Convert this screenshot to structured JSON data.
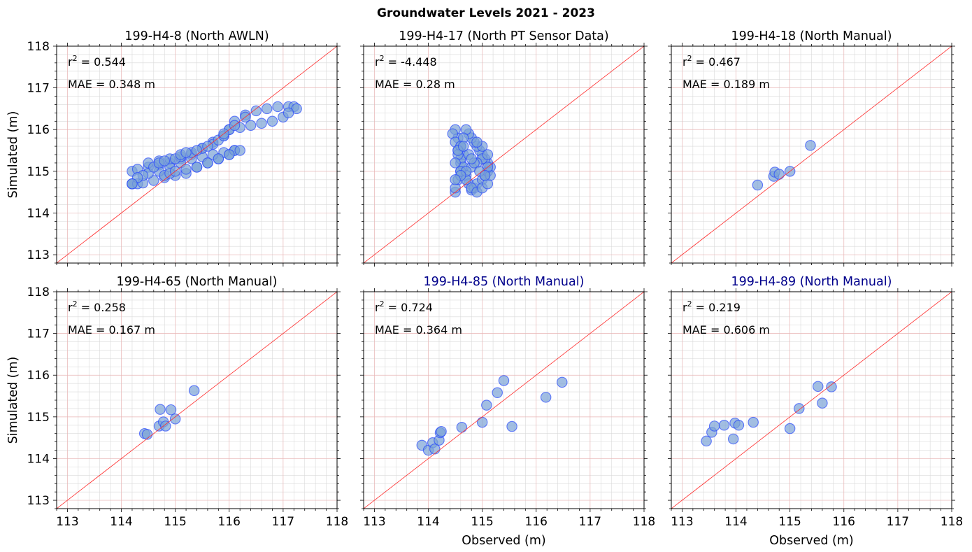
{
  "figure": {
    "title": "Groundwater Levels 2021 - 2023"
  },
  "colors": {
    "point_fill": "#7ba3d6",
    "point_edge": "#1f3fff",
    "one_to_one_line": "#ff2a2a",
    "grid_major": "#e8b4b4",
    "grid_minor": "#d9d9d9",
    "title_default": "#000000",
    "title_highlight": "#00008b"
  },
  "chart_data": [
    {
      "type": "scatter",
      "title": "199-H4-8 (North AWLN)",
      "title_color": "#000000",
      "stats": {
        "r2_label": "r",
        "r2_sup": "2",
        "r2_value": " = 0.544",
        "mae": "MAE = 0.348 m"
      },
      "xlabel": "",
      "ylabel": "Simulated (m)",
      "xlim": [
        112.8,
        118
      ],
      "ylim": [
        112.8,
        118
      ],
      "xticks": [],
      "yticks": [
        "113",
        "114",
        "115",
        "116",
        "117",
        "118"
      ],
      "grid": true,
      "one_to_one_line": true,
      "points_dense": true,
      "x": [
        114.2,
        114.2,
        114.3,
        114.5,
        114.7,
        114.9,
        115.1,
        115.3,
        115.5,
        115.7,
        115.9,
        116.0,
        116.1,
        116.3,
        116.5,
        116.7,
        116.9,
        117.1,
        117.2,
        117.25,
        114.2,
        114.3,
        114.4,
        114.6,
        114.8,
        115.0,
        115.2,
        115.4,
        115.6,
        115.8,
        116.0,
        116.1,
        116.1,
        115.9,
        115.7,
        115.5,
        115.3,
        115.1,
        114.9,
        114.7,
        114.5,
        114.4,
        114.3,
        114.2,
        114.5,
        114.7,
        114.9,
        115.1,
        115.3,
        115.5,
        115.7,
        115.8,
        115.9,
        116.0,
        116.2,
        116.4,
        116.6,
        116.8,
        117.0,
        117.1,
        114.8,
        114.9,
        115.0,
        115.2,
        115.4,
        115.6,
        115.8,
        116.0,
        116.2,
        114.6,
        114.7,
        114.8,
        115.0,
        115.1,
        115.2,
        115.4,
        115.6,
        115.9,
        116.1,
        116.3
      ],
      "y": [
        114.7,
        115.0,
        115.05,
        115.1,
        115.15,
        115.2,
        115.3,
        115.4,
        115.55,
        115.7,
        115.85,
        116.0,
        116.2,
        116.35,
        116.45,
        116.5,
        116.55,
        116.55,
        116.55,
        116.5,
        114.7,
        114.7,
        114.72,
        114.78,
        114.85,
        114.9,
        114.95,
        115.1,
        115.2,
        115.3,
        115.4,
        115.5,
        115.5,
        115.45,
        115.4,
        115.35,
        115.3,
        115.2,
        115.1,
        115.0,
        114.95,
        114.9,
        114.85,
        114.7,
        115.2,
        115.25,
        115.3,
        115.35,
        115.45,
        115.55,
        115.65,
        115.75,
        115.85,
        116.0,
        116.05,
        116.1,
        116.15,
        116.2,
        116.3,
        116.4,
        114.9,
        114.95,
        115.0,
        115.05,
        115.1,
        115.2,
        115.3,
        115.4,
        115.5,
        115.1,
        115.2,
        115.25,
        115.3,
        115.4,
        115.45,
        115.5,
        115.6,
        115.9,
        116.1,
        116.3
      ]
    },
    {
      "type": "scatter",
      "title": "199-H4-17 (North PT Sensor Data)",
      "title_color": "#000000",
      "stats": {
        "r2_label": "r",
        "r2_sup": "2",
        "r2_value": " = -4.448",
        "mae": "MAE = 0.28 m"
      },
      "xlabel": "",
      "ylabel": "",
      "xlim": [
        112.8,
        118
      ],
      "ylim": [
        112.8,
        118
      ],
      "xticks": [],
      "yticks": [],
      "grid": true,
      "one_to_one_line": true,
      "points_dense": true,
      "x": [
        114.5,
        114.5,
        114.55,
        114.6,
        114.6,
        114.65,
        114.6,
        114.55,
        114.5,
        114.45,
        114.5,
        114.55,
        114.6,
        114.65,
        114.7,
        114.75,
        114.8,
        114.85,
        114.9,
        115.0,
        115.05,
        115.1,
        115.15,
        115.1,
        115.05,
        115.0,
        114.95,
        114.9,
        114.85,
        114.8,
        114.75,
        114.7,
        114.65,
        114.6,
        114.55,
        114.5,
        114.6,
        114.7,
        114.8,
        114.9,
        115.0,
        115.1,
        115.15,
        115.1,
        115.0,
        114.9,
        114.8,
        114.7,
        114.6,
        114.5,
        114.55,
        114.65,
        114.75,
        114.85,
        114.95,
        115.05,
        115.1,
        115.0,
        114.9,
        114.8
      ],
      "y": [
        114.5,
        114.6,
        114.8,
        115.0,
        115.2,
        115.4,
        115.6,
        115.8,
        116.0,
        115.9,
        115.7,
        115.5,
        115.3,
        115.1,
        114.9,
        114.7,
        114.55,
        114.6,
        114.7,
        114.8,
        114.9,
        115.0,
        115.1,
        115.2,
        115.3,
        115.4,
        115.5,
        115.6,
        115.7,
        115.8,
        115.9,
        116.0,
        115.8,
        115.6,
        115.4,
        115.2,
        115.0,
        114.8,
        114.6,
        114.5,
        114.6,
        114.7,
        114.9,
        115.1,
        115.3,
        115.2,
        115.1,
        115.0,
        114.9,
        114.8,
        115.5,
        115.6,
        115.4,
        115.2,
        115.0,
        114.9,
        115.4,
        115.6,
        115.7,
        115.3
      ]
    },
    {
      "type": "scatter",
      "title": "199-H4-18 (North Manual)",
      "title_color": "#000000",
      "stats": {
        "r2_label": "r",
        "r2_sup": "2",
        "r2_value": " = 0.467",
        "mae": "MAE = 0.189 m"
      },
      "xlabel": "",
      "ylabel": "",
      "xlim": [
        112.8,
        118
      ],
      "ylim": [
        112.8,
        118
      ],
      "xticks": [],
      "yticks": [],
      "grid": true,
      "one_to_one_line": true,
      "points_dense": false,
      "x": [
        114.4,
        114.7,
        114.72,
        114.8,
        115.0,
        115.38
      ],
      "y": [
        114.67,
        114.88,
        114.98,
        114.93,
        115.0,
        115.62
      ]
    },
    {
      "type": "scatter",
      "title": "199-H4-65 (North Manual)",
      "title_color": "#000000",
      "stats": {
        "r2_label": "r",
        "r2_sup": "2",
        "r2_value": " = 0.258",
        "mae": "MAE = 0.167 m"
      },
      "xlabel": "",
      "ylabel": "Simulated (m)",
      "xlim": [
        112.8,
        118
      ],
      "ylim": [
        112.8,
        118
      ],
      "xticks": [
        "113",
        "114",
        "115",
        "116",
        "117",
        "118"
      ],
      "yticks": [
        "113",
        "114",
        "115",
        "116",
        "117",
        "118"
      ],
      "grid": true,
      "one_to_one_line": true,
      "points_dense": false,
      "x": [
        114.43,
        114.48,
        114.7,
        114.72,
        114.78,
        114.82,
        114.92,
        115.0,
        115.35
      ],
      "y": [
        114.6,
        114.58,
        114.78,
        115.18,
        114.88,
        114.78,
        115.17,
        114.95,
        115.63
      ]
    },
    {
      "type": "scatter",
      "title": "199-H4-85 (North Manual)",
      "title_color": "#00008b",
      "stats": {
        "r2_label": "r",
        "r2_sup": "2",
        "r2_value": " = 0.724",
        "mae": "MAE = 0.364 m"
      },
      "xlabel": "Observed (m)",
      "ylabel": "",
      "xlim": [
        112.8,
        118
      ],
      "ylim": [
        112.8,
        118
      ],
      "xticks": [
        "113",
        "114",
        "115",
        "116",
        "117",
        "118"
      ],
      "yticks": [],
      "grid": true,
      "one_to_one_line": true,
      "points_dense": false,
      "x": [
        113.88,
        114.0,
        114.08,
        114.12,
        114.2,
        114.22,
        114.24,
        114.62,
        115.0,
        115.08,
        115.28,
        115.4,
        115.55,
        116.18,
        116.48
      ],
      "y": [
        114.32,
        114.2,
        114.38,
        114.23,
        114.44,
        114.62,
        114.65,
        114.75,
        114.87,
        115.28,
        115.58,
        115.87,
        114.77,
        115.47,
        115.83
      ]
    },
    {
      "type": "scatter",
      "title": "199-H4-89 (North Manual)",
      "title_color": "#00008b",
      "stats": {
        "r2_label": "r",
        "r2_sup": "2",
        "r2_value": " = 0.219",
        "mae": "MAE = 0.606 m"
      },
      "xlabel": "Observed (m)",
      "ylabel": "",
      "xlim": [
        112.8,
        118
      ],
      "ylim": [
        112.8,
        118
      ],
      "xticks": [
        "113",
        "114",
        "115",
        "116",
        "117",
        "118"
      ],
      "yticks": [],
      "grid": true,
      "one_to_one_line": true,
      "points_dense": false,
      "x": [
        113.45,
        113.55,
        113.6,
        113.78,
        113.95,
        113.98,
        114.05,
        114.32,
        115.0,
        115.17,
        115.52,
        115.6,
        115.77
      ],
      "y": [
        114.42,
        114.63,
        114.78,
        114.8,
        114.47,
        114.85,
        114.8,
        114.87,
        114.72,
        115.2,
        115.73,
        115.33,
        115.72
      ]
    }
  ]
}
